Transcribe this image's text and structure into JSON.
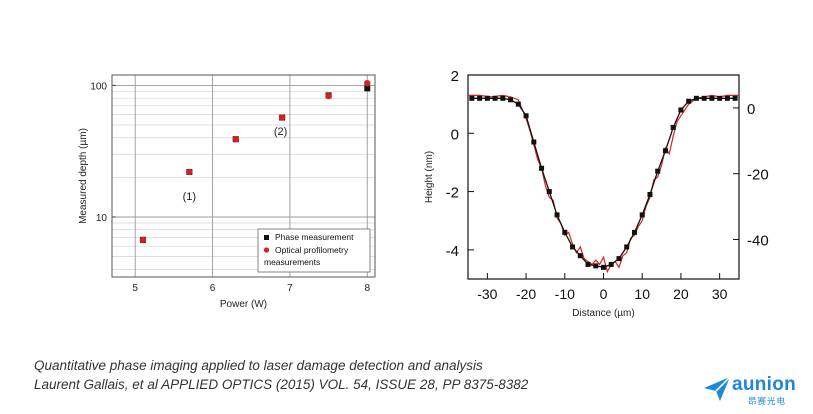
{
  "chart_data": [
    {
      "type": "scatter",
      "xlabel": "Power (W)",
      "ylabel": "Measured depth (µm)",
      "xlim": [
        4.7,
        8.1
      ],
      "ylim": [
        3.5,
        120
      ],
      "yscale": "log",
      "xticks": [
        "5",
        "6",
        "7",
        "8"
      ],
      "yticks": [
        "10",
        "100"
      ],
      "grid": true,
      "legend_position": "bottom-right",
      "series": [
        {
          "name": "Phase measurement",
          "color": "#111111",
          "marker": "square",
          "x": [
            5.1,
            5.7,
            6.3,
            6.9,
            7.5,
            8.0
          ],
          "y": [
            6.7,
            22,
            39,
            57,
            84,
            95
          ]
        },
        {
          "name": "Optical profilometry measurements",
          "color": "#d42020",
          "marker": "circle",
          "x": [
            5.1,
            5.7,
            6.3,
            6.9,
            7.5,
            8.0
          ],
          "y": [
            6.7,
            22,
            39,
            57,
            83,
            104
          ]
        }
      ],
      "annotations": [
        {
          "text": "(1)",
          "x": 5.7,
          "y": 14.5
        },
        {
          "text": "(2)",
          "x": 6.88,
          "y": 45
        }
      ]
    },
    {
      "type": "line",
      "xlabel": "Distance (µm)",
      "ylabel": "Height (nm)",
      "xlim": [
        -35,
        35
      ],
      "ylim": [
        -5,
        2
      ],
      "y2lim": [
        -52,
        10
      ],
      "xticks": [
        "-30",
        "-20",
        "-10",
        "0",
        "10",
        "20",
        "30"
      ],
      "yticks": [
        "2",
        "0",
        "-2",
        "-4"
      ],
      "y2ticks": [
        "0",
        "-20",
        "-40"
      ],
      "series": [
        {
          "name": "",
          "color": "#111111",
          "marker": "square",
          "x": [
            -34,
            -32,
            -30,
            -28,
            -26,
            -24,
            -22,
            -20,
            -18,
            -16,
            -14,
            -12,
            -10,
            -8,
            -6,
            -4,
            -2,
            0,
            2,
            4,
            6,
            8,
            10,
            12,
            14,
            16,
            18,
            20,
            22,
            24,
            26,
            28,
            30,
            32,
            34
          ],
          "y": [
            1.2,
            1.2,
            1.2,
            1.2,
            1.2,
            1.15,
            1.0,
            0.6,
            -0.3,
            -1.2,
            -2.0,
            -2.8,
            -3.4,
            -3.9,
            -4.2,
            -4.5,
            -4.55,
            -4.6,
            -4.5,
            -4.3,
            -3.9,
            -3.4,
            -2.8,
            -2.1,
            -1.3,
            -0.6,
            0.2,
            0.8,
            1.1,
            1.2,
            1.2,
            1.2,
            1.2,
            1.2,
            1.2
          ]
        },
        {
          "name": "",
          "color": "#e02020",
          "marker": "none",
          "x": [
            -35,
            -32,
            -29,
            -26,
            -24,
            -22,
            -20,
            -19,
            -18,
            -17,
            -16,
            -15,
            -14,
            -13,
            -12,
            -11,
            -10,
            -9,
            -8,
            -7,
            -6,
            -5,
            -4,
            -3,
            -2,
            -1,
            0,
            1,
            2,
            3,
            4,
            5,
            6,
            7,
            8,
            9,
            10,
            11,
            12,
            13,
            14,
            15,
            16,
            17,
            18,
            19,
            20,
            22,
            24,
            26,
            28,
            30,
            32,
            35
          ],
          "y": [
            1.3,
            1.3,
            1.25,
            1.3,
            1.25,
            1.15,
            0.5,
            0.1,
            -0.4,
            -0.9,
            -1.2,
            -1.8,
            -2.2,
            -2.3,
            -2.9,
            -3.1,
            -3.5,
            -3.4,
            -3.8,
            -4.1,
            -3.9,
            -4.3,
            -4.4,
            -4.5,
            -4.35,
            -4.5,
            -4.25,
            -4.75,
            -4.5,
            -4.4,
            -4.6,
            -4.2,
            -4.1,
            -3.6,
            -3.5,
            -3.2,
            -3.0,
            -2.5,
            -2.2,
            -1.6,
            -1.5,
            -1.1,
            -0.5,
            -0.7,
            -0.1,
            0.4,
            0.6,
            1.0,
            1.2,
            1.25,
            1.3,
            1.25,
            1.3,
            1.3
          ]
        }
      ]
    }
  ],
  "caption": {
    "line1": "Quantitative phase imaging applied to laser damage detection and analysis",
    "line2": "Laurent Gallais, et al APPLIED OPTICS (2015) VOL. 54, ISSUE 28, PP 8375-8382"
  },
  "brand": {
    "name": "aunion",
    "sub": "昂赛光电",
    "color": "#1e88d6",
    "icon": "paper-plane-icon"
  }
}
